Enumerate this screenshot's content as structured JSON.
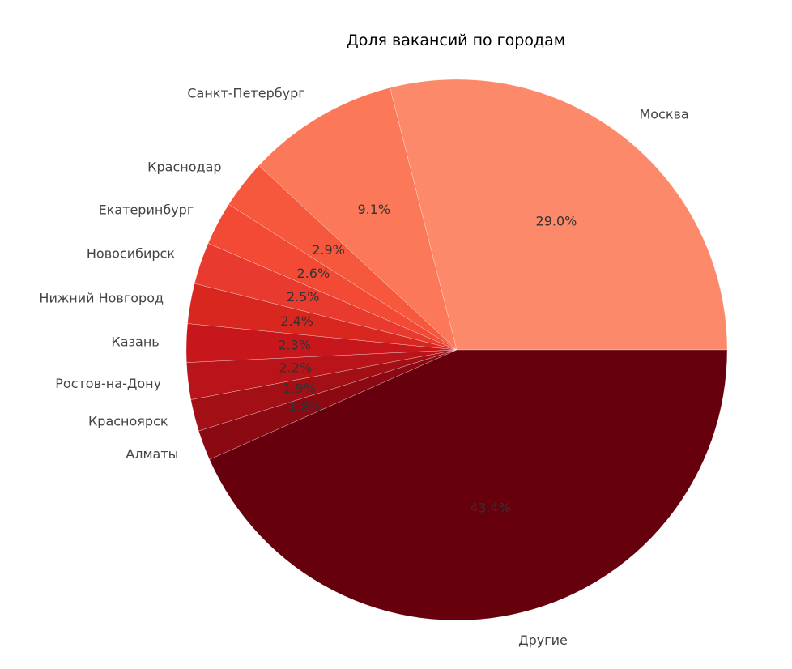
{
  "chart_data": {
    "type": "pie",
    "title": "Доля вакансий по городам",
    "slices": [
      {
        "label": "Москва",
        "value": 29.0,
        "pct_label": "29.0%",
        "color": "#fc8a6a"
      },
      {
        "label": "Санкт-Петербург",
        "value": 9.1,
        "pct_label": "9.1%",
        "color": "#fb7858"
      },
      {
        "label": "Краснодар",
        "value": 2.9,
        "pct_label": "2.9%",
        "color": "#f6583e"
      },
      {
        "label": "Екатеринбург",
        "value": 2.6,
        "pct_label": "2.6%",
        "color": "#f24a35"
      },
      {
        "label": "Новосибирск",
        "value": 2.5,
        "pct_label": "2.5%",
        "color": "#e83a2f"
      },
      {
        "label": "Нижний Новгород",
        "value": 2.4,
        "pct_label": "2.4%",
        "color": "#d7271f"
      },
      {
        "label": "Казань",
        "value": 2.3,
        "pct_label": "2.3%",
        "color": "#c8171c"
      },
      {
        "label": "Ростов-на-Дону",
        "value": 2.2,
        "pct_label": "2.2%",
        "color": "#b81419"
      },
      {
        "label": "Красноярск",
        "value": 1.9,
        "pct_label": "1.9%",
        "color": "#a20f15"
      },
      {
        "label": "Алматы",
        "value": 1.8,
        "pct_label": "1.8%",
        "color": "#8a0913"
      },
      {
        "label": "Другие",
        "value": 43.4,
        "pct_label": "43.4%",
        "color": "#67000d"
      }
    ],
    "start_angle": "0 degrees (3 o'clock), counter-clockwise",
    "legend": "none (labels placed outside slices)"
  }
}
